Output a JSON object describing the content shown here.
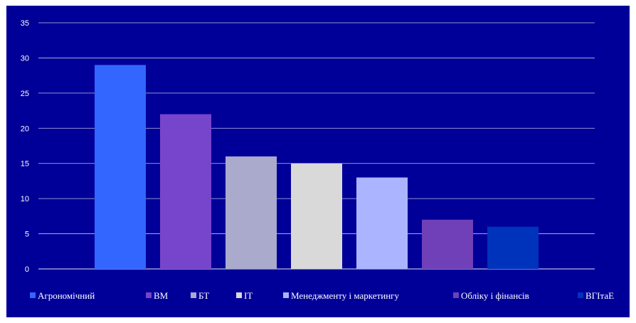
{
  "chart_data": {
    "type": "bar",
    "title": "",
    "xlabel": "",
    "ylabel": "",
    "ylim": [
      0,
      35
    ],
    "yticks": [
      0,
      5,
      10,
      15,
      20,
      25,
      30,
      35
    ],
    "grid": true,
    "legend_position": "bottom",
    "background": "#000099",
    "categories": [
      "Агрономічний",
      "ВМ",
      "БТ",
      "ІТ",
      "Менеджменту і маркетингу",
      "Обліку і фінансів",
      "ВГІтаЕ"
    ],
    "values": [
      29,
      22,
      16,
      15,
      13,
      7,
      6
    ],
    "colors": [
      "#3366ff",
      "#7744cc",
      "#aaaacc",
      "#d9d9d9",
      "#aab4ff",
      "#7040b8",
      "#0033bb"
    ]
  }
}
